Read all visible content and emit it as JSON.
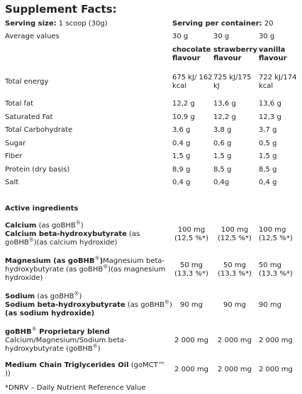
{
  "title": "Supplement Facts:",
  "serving_size": {
    "label": "Serving size:",
    "value": "1 scoop (30g)"
  },
  "servings": {
    "label": "Serving per container:",
    "value": "20"
  },
  "average": {
    "label": "Average values",
    "cells": [
      "30 g",
      "30 g",
      "30 g"
    ]
  },
  "flavours": [
    "chocolate flavour",
    "strawberry flavour",
    "vanilla flavour"
  ],
  "nutrition": [
    {
      "label": "Total energy",
      "cells": [
        "675 kJ/ 162 kcal",
        "725 kJ/175 kJ",
        "722 kJ/174 kcal"
      ]
    },
    {
      "label": "Total fat",
      "cells": [
        "12,2 g",
        "13,6 g",
        "13,6 g"
      ]
    },
    {
      "label": "Saturated Fat",
      "cells": [
        "10,9 g",
        "12,2 g",
        "12,3 g"
      ]
    },
    {
      "label": "Total Carbohydrate",
      "cells": [
        "3,6 g",
        "3,8 g",
        "3,7 g"
      ]
    },
    {
      "label": "Sugar",
      "cells": [
        "0,4 g",
        "0,6 g",
        "0,5 g"
      ]
    },
    {
      "label": "Fiber",
      "cells": [
        "1,5 g",
        "1,5 g",
        "1,5 g"
      ]
    },
    {
      "label": "Protein (dry basis)",
      "cells": [
        "8,9 g",
        "8,5 g",
        "8,5 g"
      ]
    },
    {
      "label": "Salt",
      "cells": [
        "0,4 g",
        "0,4g",
        "0,4 g"
      ]
    }
  ],
  "active_title": "Active ingredients",
  "active": [
    {
      "lines": [
        [
          {
            "text": "Calcium",
            "style": "b"
          },
          {
            "text": " (as goBHB"
          },
          {
            "text": "®",
            "style": "sup"
          },
          {
            "text": ")"
          }
        ],
        [
          {
            "text": "Calcium beta-hydroxybutyrate",
            "style": "b"
          },
          {
            "text": " (as goBHB"
          },
          {
            "text": "®",
            "style": "sup"
          },
          {
            "text": ")(as calcium hydroxide)"
          }
        ]
      ],
      "cells": [
        "100 mg (12,5 %*)",
        "100 mg (12,5 %*)",
        "100 mg (12,5 %*)"
      ]
    },
    {
      "lines": [
        [
          {
            "text": "Magnesium (as goBHB",
            "style": "b"
          },
          {
            "text": "®",
            "style": "sup"
          },
          {
            "text": ")",
            "style": "b"
          },
          {
            "text": "Magnesium beta-hydroxybutyrate (as goBHB"
          },
          {
            "text": "®",
            "style": "sup"
          },
          {
            "text": ")(as magnesium hydroxide)"
          }
        ]
      ],
      "cells": [
        "50 mg (13,3 %*)",
        "50 mg (13,3 %*)",
        "50 mg (13,3 %*)"
      ]
    },
    {
      "lines": [
        [
          {
            "text": "Sodium",
            "style": "b"
          },
          {
            "text": " (as goBHB"
          },
          {
            "text": "®",
            "style": "sup"
          },
          {
            "text": ")"
          }
        ],
        [
          {
            "text": "Sodium beta-hydroxybutyrate",
            "style": "b"
          },
          {
            "text": " (as goBHB"
          },
          {
            "text": "®",
            "style": "sup"
          },
          {
            "text": ") "
          },
          {
            "text": "(as sodium hydroxide)",
            "style": "b"
          }
        ]
      ],
      "cells": [
        "90 mg",
        "90 mg",
        "90 mg"
      ]
    },
    {
      "lines": [
        [
          {
            "text": "goBHB",
            "style": "b"
          },
          {
            "text": "®",
            "style": "sup"
          },
          {
            "text": " Proprietary blend",
            "style": "b"
          }
        ],
        [
          {
            "text": "Calcium/Magnesium/Sodium beta-hydroxybutyrate (goBHB"
          },
          {
            "text": "®",
            "style": "sup"
          },
          {
            "text": ")"
          }
        ]
      ],
      "cells": [
        "2 000 mg",
        "2 000 mg",
        "2 000 mg"
      ]
    },
    {
      "lines": [
        [
          {
            "text": "Medium Chain Triglycerides Oil",
            "style": "b"
          },
          {
            "text": " (goMCT™ ))"
          }
        ]
      ],
      "cells": [
        "2 000 mg",
        "2 000 mg",
        "2 000 mg"
      ]
    }
  ],
  "footnote": "*DNRV – Daily Nutrient Reference Value"
}
